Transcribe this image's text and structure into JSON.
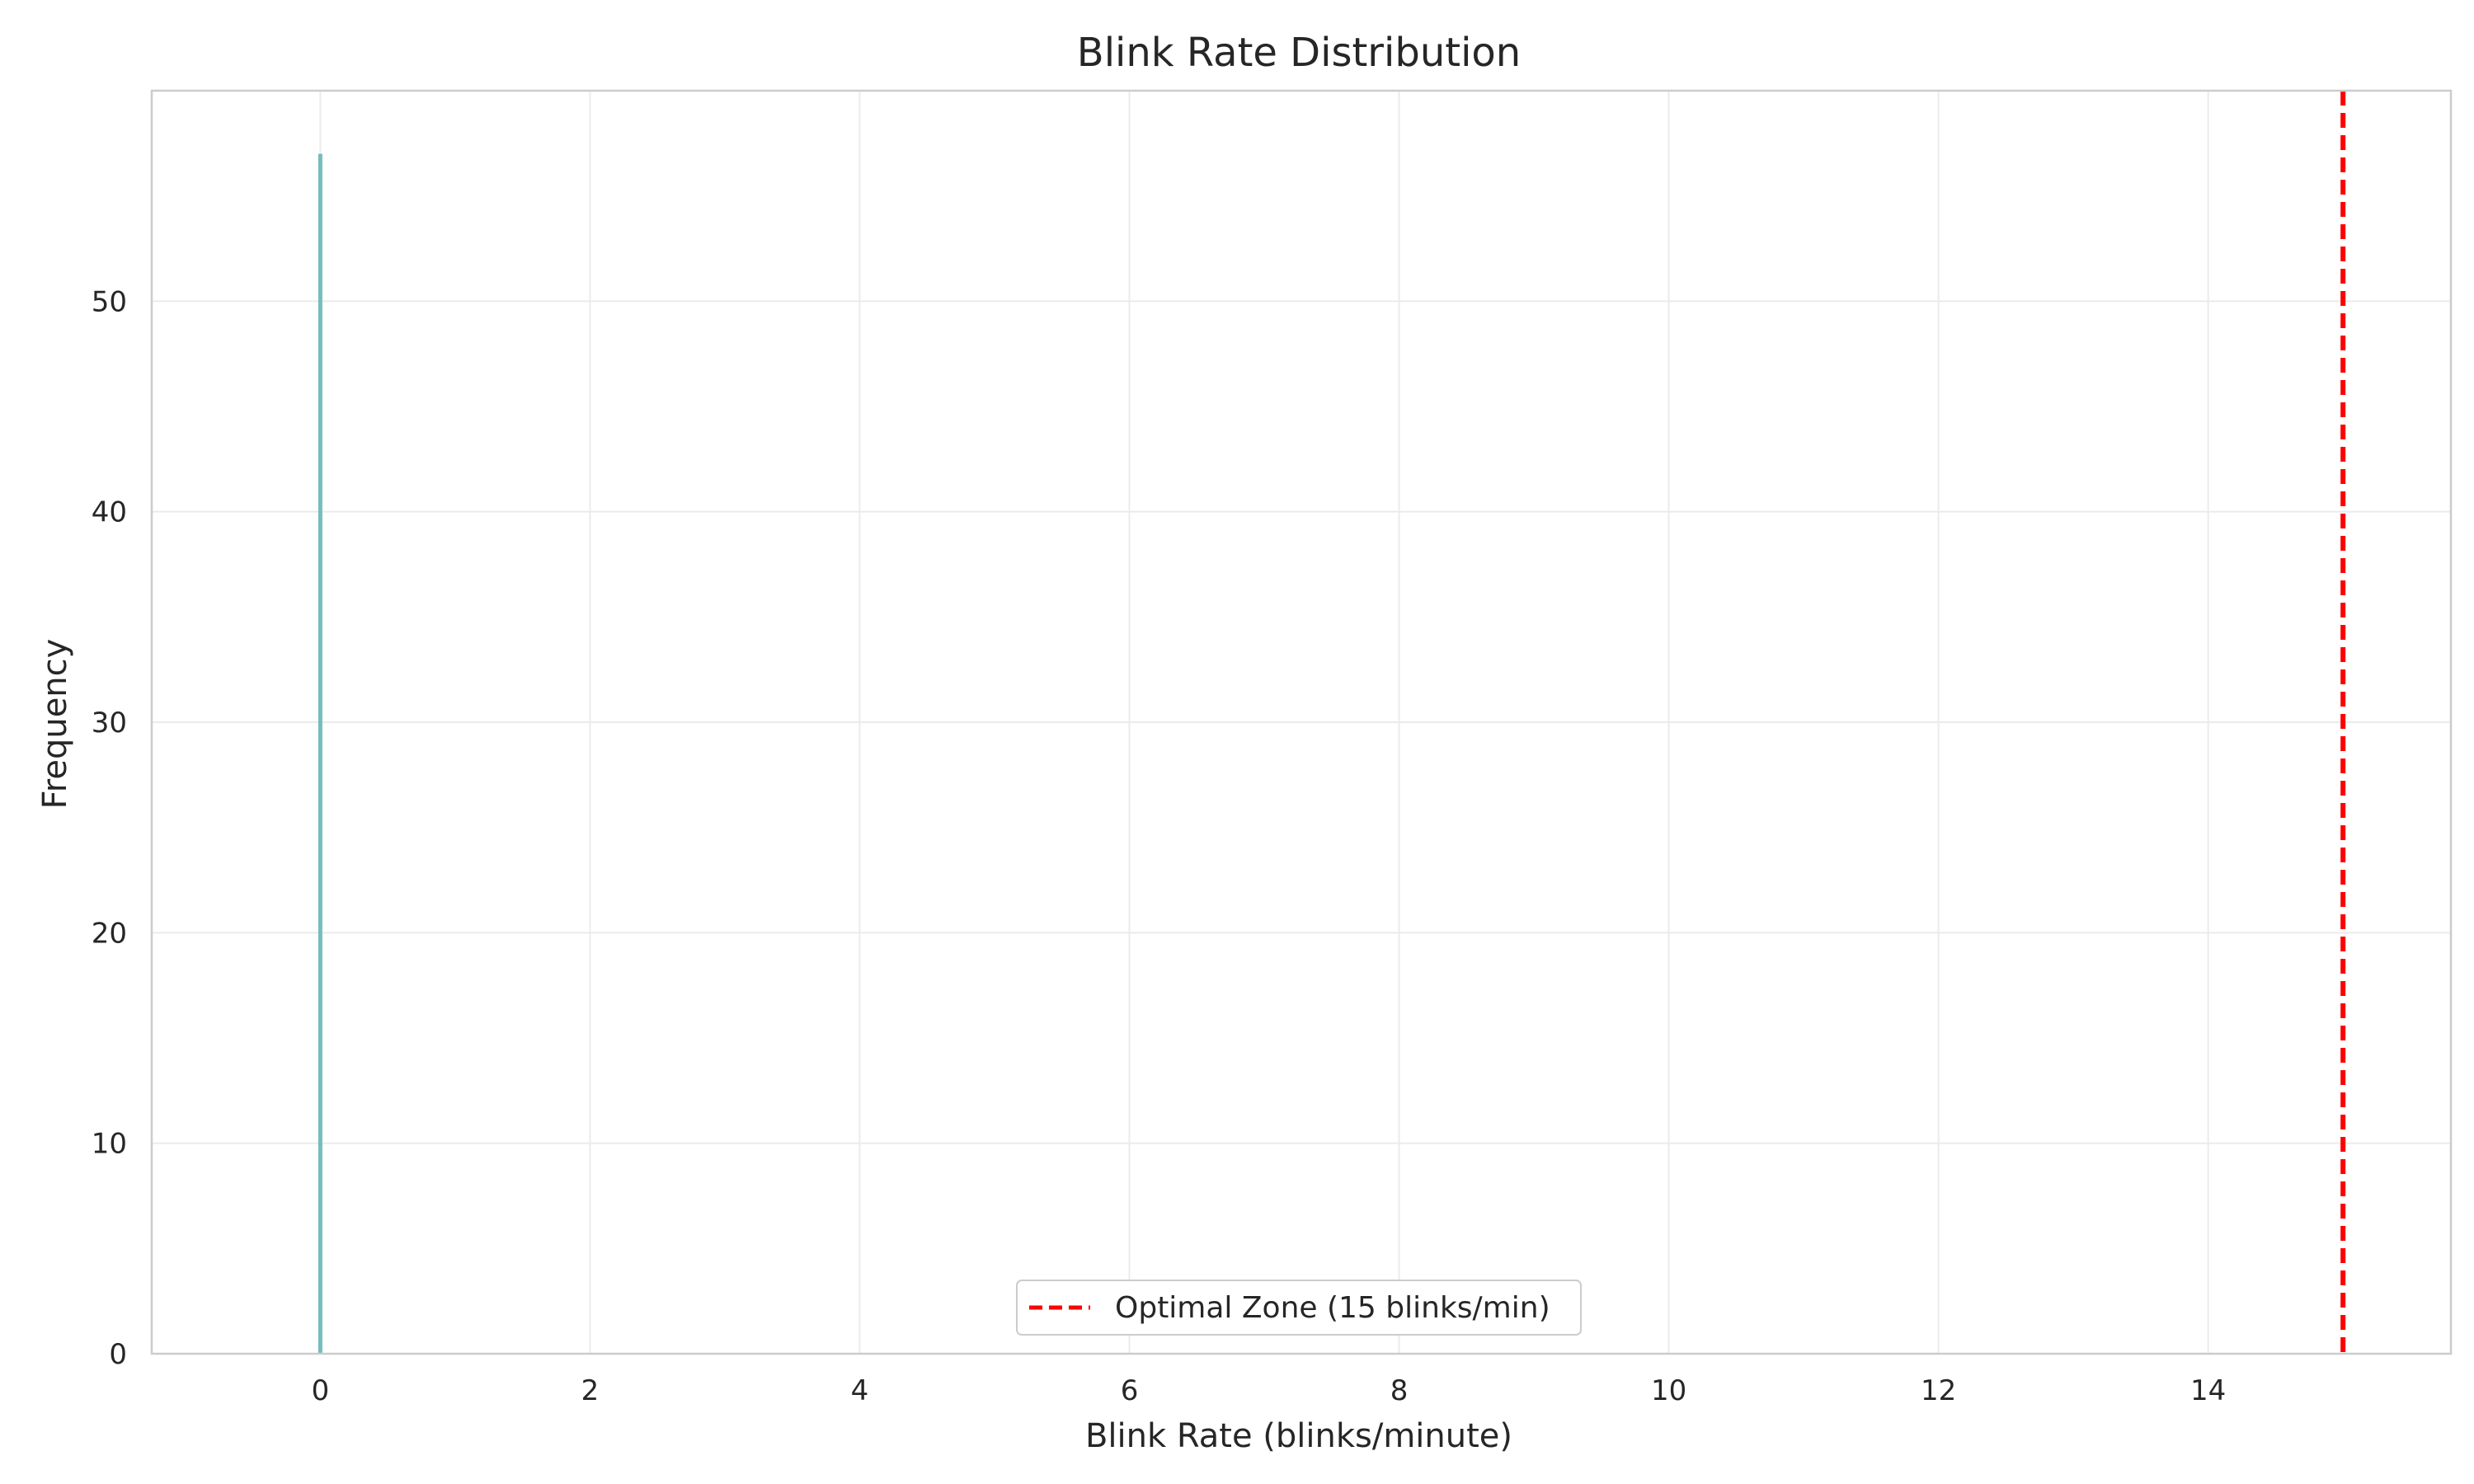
{
  "chart_data": {
    "type": "bar",
    "title": "Blink Rate Distribution",
    "xlabel": "Blink Rate (blinks/minute)",
    "ylabel": "Frequency",
    "xlim": [
      -1.25,
      15.8
    ],
    "ylim": [
      0,
      60
    ],
    "xticks": [
      0,
      2,
      4,
      6,
      8,
      10,
      12,
      14
    ],
    "yticks": [
      0,
      10,
      20,
      30,
      40,
      50
    ],
    "grid": true,
    "bars": [
      {
        "x": 0,
        "value": 57,
        "color": "#76bcbc"
      }
    ],
    "reference_lines": [
      {
        "x": 15,
        "label": "Optimal Zone (15 blinks/min)",
        "color": "#ff0000",
        "style": "dashed"
      }
    ],
    "legend": {
      "placement": "lower center",
      "entries": [
        "Optimal Zone (15 blinks/min)"
      ]
    }
  }
}
